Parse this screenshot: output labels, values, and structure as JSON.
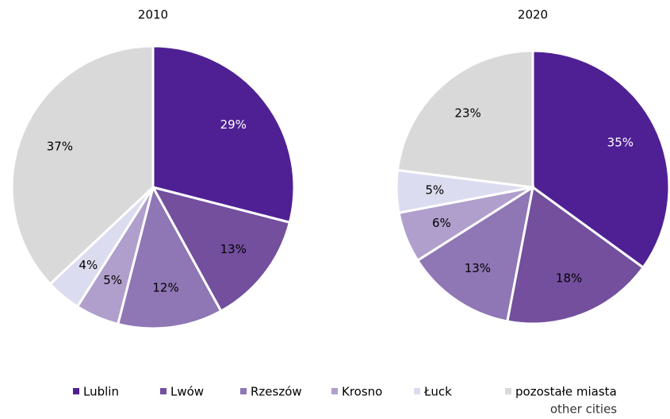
{
  "chart_data": [
    {
      "type": "pie",
      "title": "2010",
      "categories": [
        "Lublin",
        "Lwów",
        "Rzeszów",
        "Krosno",
        "Łuck",
        "pozostałe miasta"
      ],
      "values": [
        29,
        13,
        12,
        5,
        4,
        37
      ],
      "value_labels": [
        "29%",
        "13%",
        "12%",
        "5%",
        "4%",
        "37%"
      ],
      "colors": [
        "#4f2094",
        "#734f9e",
        "#8f76b5",
        "#b09fcc",
        "#dcdcf0",
        "#d9d9d9"
      ],
      "label_colors": [
        "#ffffff",
        "#000000",
        "#000000",
        "#000000",
        "#000000",
        "#000000"
      ],
      "legend_note": "other cities"
    },
    {
      "type": "pie",
      "title": "2020",
      "categories": [
        "Lublin",
        "Lwów",
        "Rzeszów",
        "Krosno",
        "Łuck",
        "pozostałe miasta"
      ],
      "values": [
        35,
        18,
        13,
        6,
        5,
        23
      ],
      "value_labels": [
        "35%",
        "18%",
        "13%",
        "6%",
        "5%",
        "23%"
      ],
      "colors": [
        "#4f2094",
        "#734f9e",
        "#8f76b5",
        "#b09fcc",
        "#dcdcf0",
        "#d9d9d9"
      ],
      "label_colors": [
        "#ffffff",
        "#000000",
        "#000000",
        "#000000",
        "#000000",
        "#000000"
      ]
    }
  ]
}
